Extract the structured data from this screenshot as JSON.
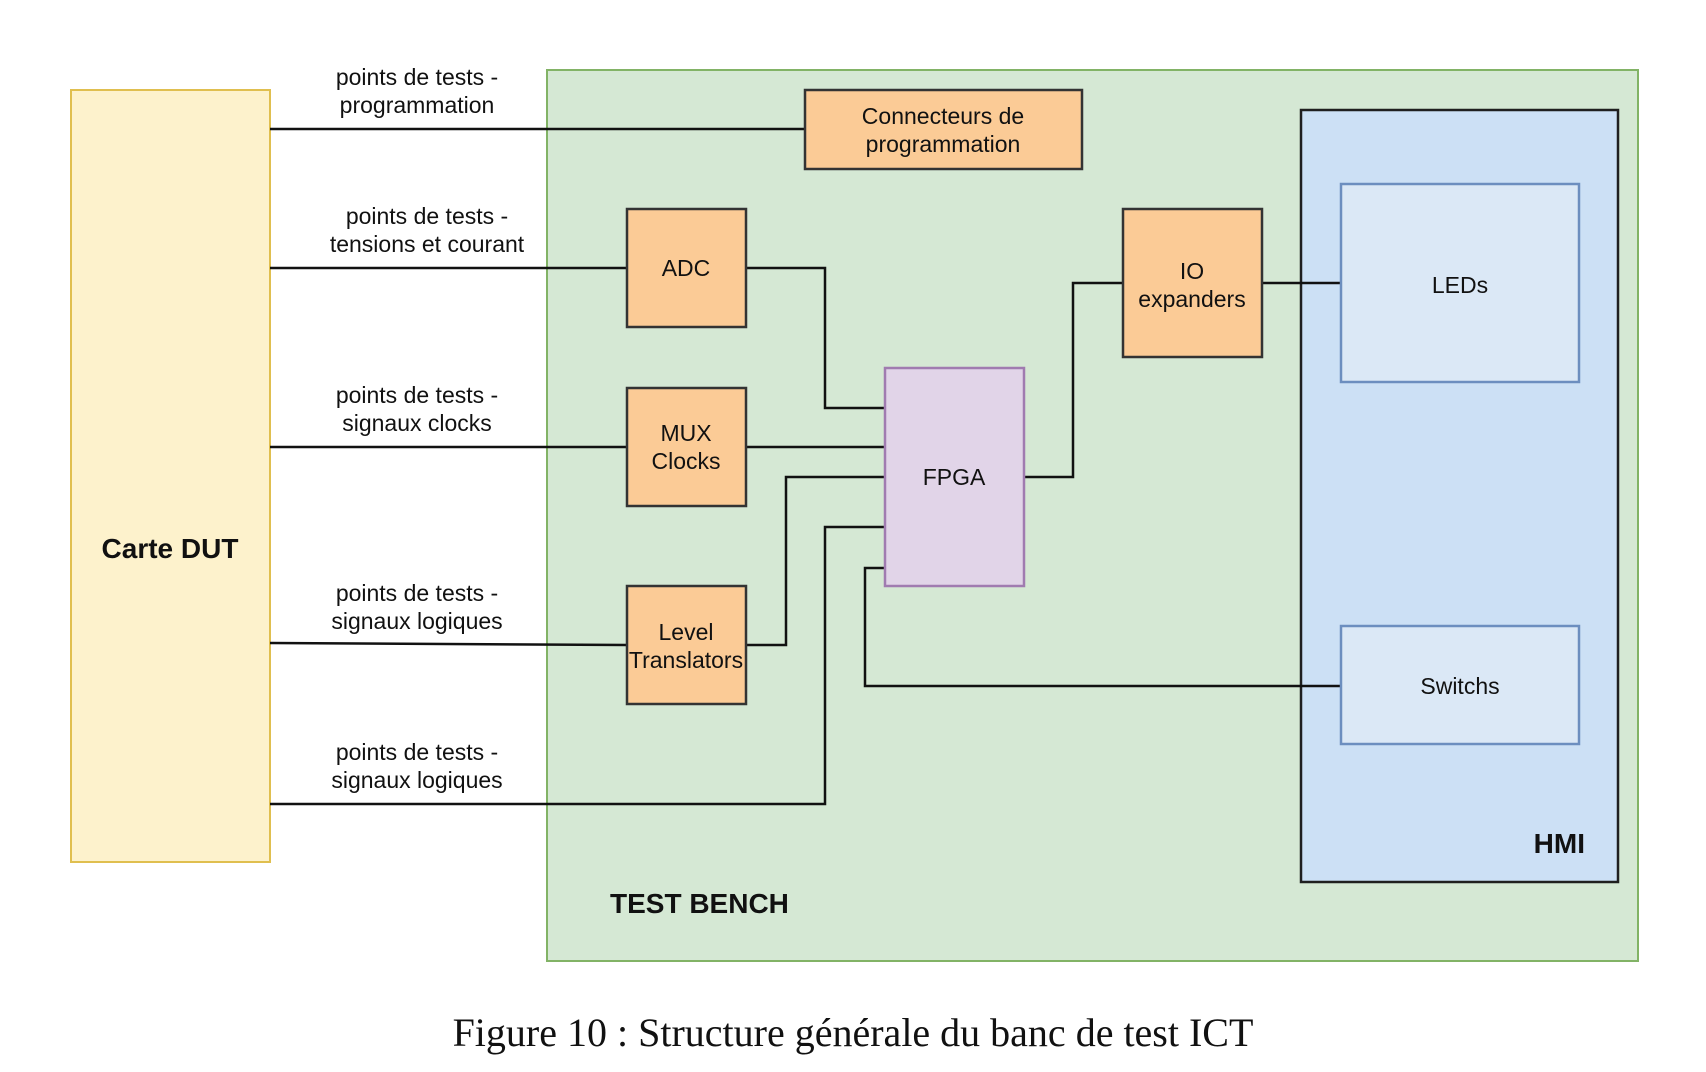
{
  "regions": {
    "test_bench": "TEST BENCH",
    "hmi": "HMI"
  },
  "blocks": {
    "dut": "Carte DUT",
    "programming_connectors": [
      "Connecteurs de",
      "programmation"
    ],
    "adc": "ADC",
    "mux_clocks": [
      "MUX",
      "Clocks"
    ],
    "level_translators": [
      "Level",
      "Translators"
    ],
    "fpga": "FPGA",
    "io_expanders": [
      "IO",
      "expanders"
    ],
    "leds": "LEDs",
    "switchs": "Switchs"
  },
  "connections": [
    {
      "line1": "points de tests -",
      "line2": "programmation"
    },
    {
      "line1": "points de tests -",
      "line2": "tensions et courant"
    },
    {
      "line1": "points de tests -",
      "line2": "signaux clocks"
    },
    {
      "line1": "points de tests -",
      "line2": "signaux logiques"
    },
    {
      "line1": "points de tests -",
      "line2": "signaux logiques"
    }
  ],
  "caption": "Figure 10 : Structure générale du banc de test ICT"
}
